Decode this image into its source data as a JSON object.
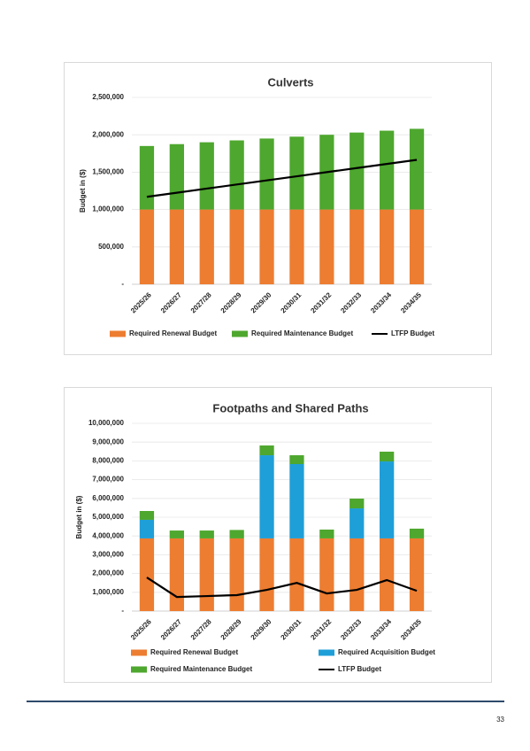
{
  "chart_data": [
    {
      "type": "bar",
      "stacked": true,
      "title": "Culverts",
      "y_label": "Budget in ($)",
      "categories": [
        "2025/26",
        "2026/27",
        "2027/28",
        "2028/29",
        "2029/30",
        "2030/31",
        "2031/32",
        "2032/33",
        "2033/34",
        "2034/35"
      ],
      "series": [
        {
          "name": "Required Renewal Budget",
          "color": "#ed7d31",
          "values": [
            1000000,
            1000000,
            1000000,
            1000000,
            1000000,
            1000000,
            1000000,
            1000000,
            1000000,
            1000000
          ]
        },
        {
          "name": "Required Maintenance Budget",
          "color": "#4ea72e",
          "values": [
            850000,
            875000,
            900000,
            925000,
            950000,
            975000,
            1000000,
            1030000,
            1055000,
            1080000
          ]
        },
        {
          "name": "LTFP Budget",
          "color": "#000000",
          "type": "line",
          "values": [
            1170000,
            1225000,
            1280000,
            1335000,
            1390000,
            1445000,
            1500000,
            1555000,
            1610000,
            1665000
          ]
        }
      ],
      "ylim": [
        0,
        2500000
      ],
      "yticks": [
        {
          "value": 0,
          "label": "-"
        },
        {
          "value": 500000,
          "label": "500,000"
        },
        {
          "value": 1000000,
          "label": "1,000,000"
        },
        {
          "value": 1500000,
          "label": "1,500,000"
        },
        {
          "value": 2000000,
          "label": "2,000,000"
        },
        {
          "value": 2500000,
          "label": "2,500,000"
        }
      ],
      "grid": true,
      "legend": "bottom"
    },
    {
      "type": "bar",
      "stacked": true,
      "title": "Footpaths and Shared Paths",
      "y_label": "Budget in ($)",
      "categories": [
        "2025/26",
        "2026/27",
        "2027/28",
        "2028/29",
        "2029/30",
        "2030/31",
        "2031/32",
        "2032/33",
        "2033/34",
        "2034/35"
      ],
      "series": [
        {
          "name": "Required Renewal Budget",
          "color": "#ed7d31",
          "values": [
            3870000,
            3870000,
            3870000,
            3870000,
            3870000,
            3870000,
            3870000,
            3870000,
            3870000,
            3870000
          ]
        },
        {
          "name": "Required Acquisition Budget",
          "color": "#1f9fd8",
          "values": [
            990000,
            0,
            0,
            0,
            4430000,
            3960000,
            0,
            1600000,
            4100000,
            0
          ]
        },
        {
          "name": "Required Maintenance Budget",
          "color": "#4ea72e",
          "values": [
            470000,
            420000,
            420000,
            450000,
            520000,
            470000,
            470000,
            520000,
            520000,
            520000
          ]
        },
        {
          "name": "LTFP Budget",
          "color": "#000000",
          "type": "line",
          "values": [
            1790000,
            750000,
            800000,
            850000,
            1130000,
            1500000,
            940000,
            1130000,
            1650000,
            1080000
          ]
        }
      ],
      "ylim": [
        0,
        10000000
      ],
      "yticks": [
        {
          "value": 0,
          "label": "-"
        },
        {
          "value": 1000000,
          "label": "1,000,000"
        },
        {
          "value": 2000000,
          "label": "2,000,000"
        },
        {
          "value": 3000000,
          "label": "3,000,000"
        },
        {
          "value": 4000000,
          "label": "4,000,000"
        },
        {
          "value": 5000000,
          "label": "5,000,000"
        },
        {
          "value": 6000000,
          "label": "6,000,000"
        },
        {
          "value": 7000000,
          "label": "7,000,000"
        },
        {
          "value": 8000000,
          "label": "8,000,000"
        },
        {
          "value": 9000000,
          "label": "9,000,000"
        },
        {
          "value": 10000000,
          "label": "10,000,000"
        }
      ],
      "grid": true,
      "legend": "bottom"
    }
  ],
  "page_number": "33"
}
